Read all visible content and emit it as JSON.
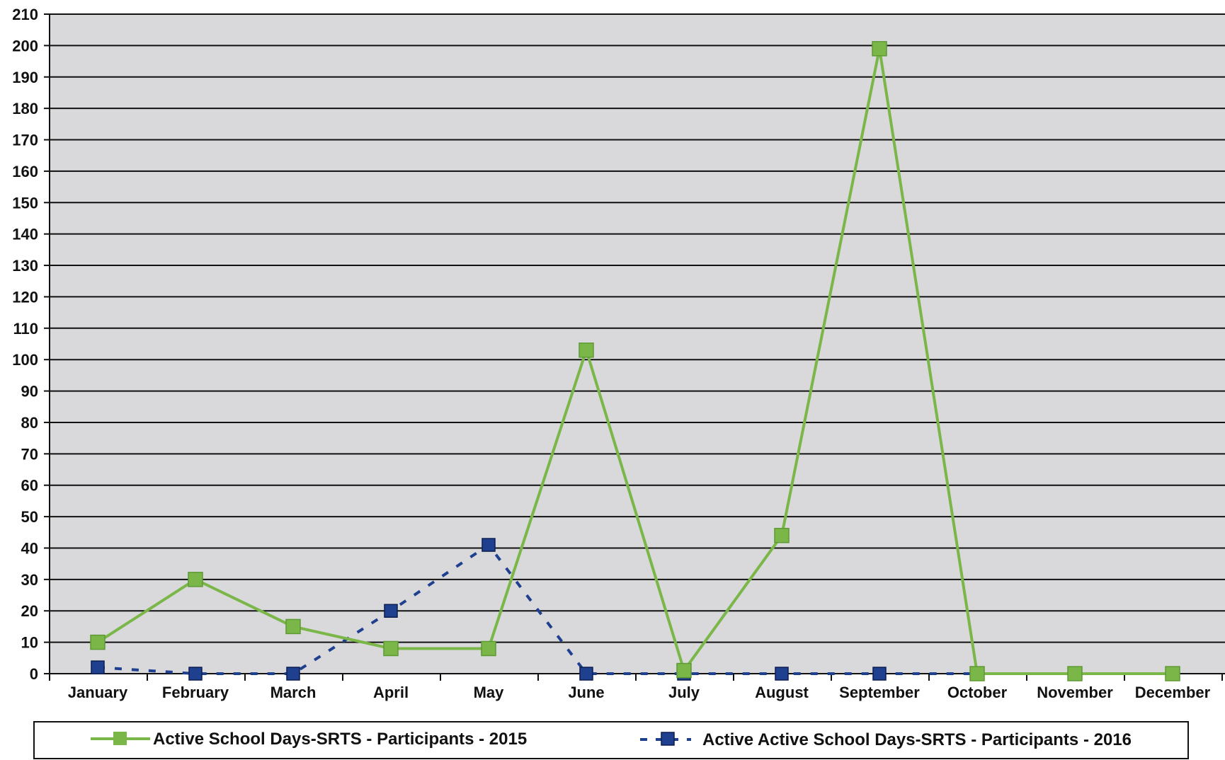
{
  "chart_data": {
    "type": "line",
    "title": "",
    "xlabel": "",
    "ylabel": "",
    "categories": [
      "January",
      "February",
      "March",
      "April",
      "May",
      "June",
      "July",
      "August",
      "September",
      "October",
      "November",
      "December"
    ],
    "ylim": [
      0,
      210
    ],
    "ytick_step": 10,
    "grid": true,
    "legend_position": "bottom",
    "series": [
      {
        "name": "Active School Days-SRTS - Participants - 2015",
        "values": [
          10,
          30,
          15,
          8,
          8,
          103,
          1,
          44,
          199,
          0,
          0,
          0
        ],
        "color": "#7ab648",
        "line_style": "solid",
        "marker": "square"
      },
      {
        "name": "Active Active School Days-SRTS - Participants - 2016",
        "values": [
          2,
          0,
          0,
          20,
          41,
          0,
          0,
          0,
          0,
          0,
          0,
          0
        ],
        "color": "#1f3f8f",
        "line_style": "dashed",
        "marker": "square"
      }
    ],
    "plot_background": "#d9d9dc"
  }
}
